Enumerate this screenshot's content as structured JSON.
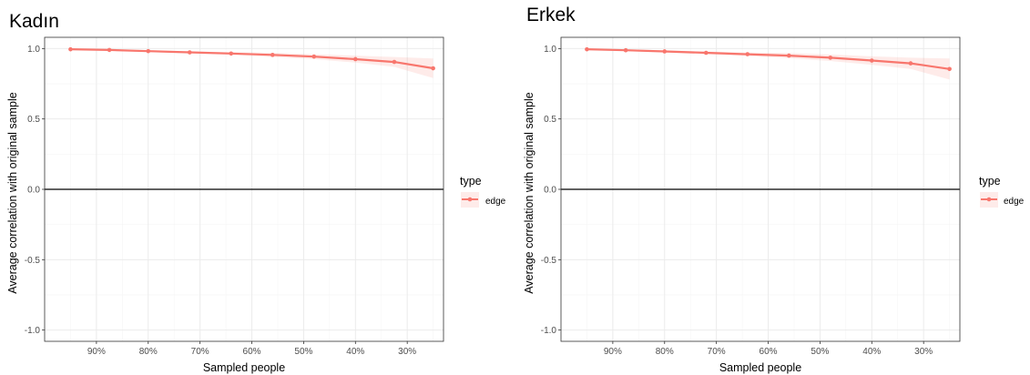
{
  "colors": {
    "series": "#F8766D",
    "ribbon": "#F8766D",
    "grid_major": "#ebebeb",
    "grid_minor": "#f5f5f5",
    "border": "#333333",
    "zero_line": "#000000"
  },
  "chart_data": [
    {
      "type": "line",
      "title": "Kadın",
      "xlabel": "Sampled people",
      "ylabel": "Average correlation with original sample",
      "x_axis": "reversed-percent",
      "xlim": [
        100,
        23
      ],
      "ylim": [
        -1.08,
        1.08
      ],
      "x_ticks": [
        90,
        80,
        70,
        60,
        50,
        40,
        30
      ],
      "x_tick_labels": [
        "90%",
        "80%",
        "70%",
        "60%",
        "50%",
        "40%",
        "30%"
      ],
      "y_ticks": [
        1.0,
        0.5,
        0.0,
        -0.5,
        -1.0
      ],
      "y_tick_labels": [
        "1.0",
        "0.5",
        "0.0",
        "-0.5",
        "-1.0"
      ],
      "hline": 0,
      "grid": true,
      "legend": {
        "title": "type",
        "entries": [
          "edge"
        ],
        "placement": "right"
      },
      "series": [
        {
          "name": "edge",
          "x": [
            95,
            87.5,
            80,
            72,
            64,
            56,
            48,
            40,
            32.5,
            25
          ],
          "values": [
            0.995,
            0.99,
            0.982,
            0.973,
            0.965,
            0.955,
            0.943,
            0.925,
            0.905,
            0.86
          ],
          "lower": [
            0.99,
            0.985,
            0.975,
            0.965,
            0.955,
            0.94,
            0.925,
            0.9,
            0.87,
            0.79
          ],
          "upper": [
            1.0,
            0.995,
            0.99,
            0.98,
            0.975,
            0.97,
            0.96,
            0.95,
            0.94,
            0.93
          ]
        }
      ]
    },
    {
      "type": "line",
      "title": "Erkek",
      "xlabel": "Sampled people",
      "ylabel": "Average correlation with original sample",
      "x_axis": "reversed-percent",
      "xlim": [
        100,
        23
      ],
      "ylim": [
        -1.08,
        1.08
      ],
      "x_ticks": [
        90,
        80,
        70,
        60,
        50,
        40,
        30
      ],
      "x_tick_labels": [
        "90%",
        "80%",
        "70%",
        "60%",
        "50%",
        "40%",
        "30%"
      ],
      "y_ticks": [
        1.0,
        0.5,
        0.0,
        -0.5,
        -1.0
      ],
      "y_tick_labels": [
        "1.0",
        "0.5",
        "0.0",
        "-0.5",
        "-1.0"
      ],
      "hline": 0,
      "grid": true,
      "legend": {
        "title": "type",
        "entries": [
          "edge"
        ],
        "placement": "right"
      },
      "series": [
        {
          "name": "edge",
          "x": [
            95,
            87.5,
            80,
            72,
            64,
            56,
            48,
            40,
            32.5,
            25
          ],
          "values": [
            0.995,
            0.988,
            0.98,
            0.97,
            0.96,
            0.95,
            0.935,
            0.915,
            0.895,
            0.855
          ],
          "lower": [
            0.99,
            0.982,
            0.972,
            0.96,
            0.948,
            0.932,
            0.912,
            0.885,
            0.855,
            0.78
          ],
          "upper": [
            1.0,
            0.994,
            0.988,
            0.98,
            0.972,
            0.968,
            0.958,
            0.945,
            0.935,
            0.93
          ]
        }
      ]
    }
  ]
}
